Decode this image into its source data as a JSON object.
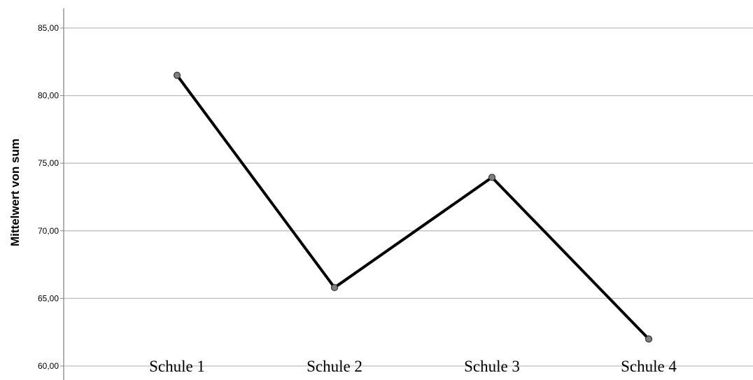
{
  "chart_data": {
    "type": "line",
    "title": "",
    "xlabel": "",
    "ylabel": "Mittelwert von sum",
    "categories": [
      "Schule 1",
      "Schule 2",
      "Schule 3",
      "Schule 4"
    ],
    "series": [
      {
        "values": [
          81.5,
          65.8,
          73.95,
          62.0
        ]
      }
    ],
    "ylim": [
      60,
      85
    ],
    "yticks": [
      "60,00",
      "65,00",
      "70,00",
      "75,00",
      "80,00",
      "85,00"
    ],
    "ytick_values": [
      60,
      65,
      70,
      75,
      80,
      85
    ],
    "grid": true,
    "legend": "none",
    "line_color": "#000000",
    "marker_color": "#7f7f7f",
    "grid_color": "#bdbdbd",
    "axis_color": "#888888"
  }
}
